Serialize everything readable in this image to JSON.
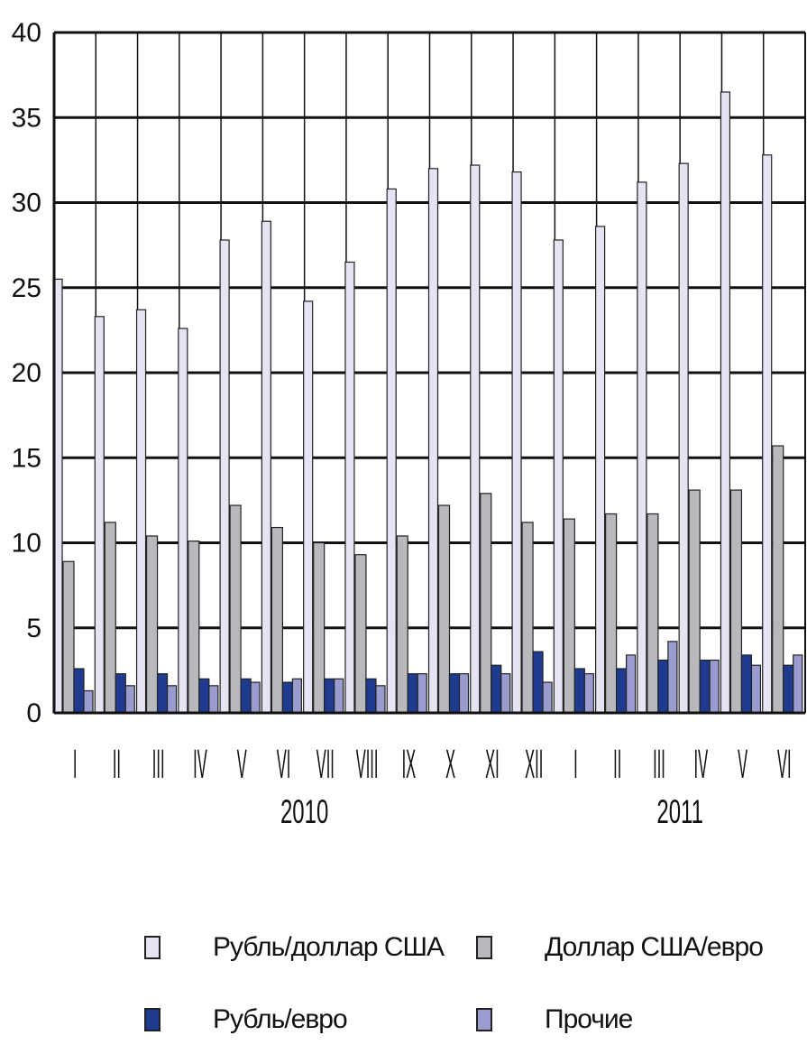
{
  "chart_data": {
    "type": "bar",
    "title": "",
    "xlabel": "",
    "ylabel": "",
    "ylim": [
      0,
      40
    ],
    "yticks": [
      "0",
      "5",
      "10",
      "15",
      "20",
      "25",
      "30",
      "35",
      "40"
    ],
    "grid": "horizontal",
    "categories": [
      "I",
      "II",
      "III",
      "IV",
      "V",
      "VI",
      "VII",
      "VIII",
      "IX",
      "X",
      "XI",
      "XII",
      "I",
      "II",
      "III",
      "IV",
      "V",
      "VI"
    ],
    "years": [
      {
        "label": "2010",
        "start": 0,
        "end": 11
      },
      {
        "label": "2011",
        "start": 12,
        "end": 17
      }
    ],
    "series": [
      {
        "name": "Рубль/доллар США",
        "color": "#e4e4f2",
        "values": [
          25.5,
          23.3,
          23.7,
          22.6,
          27.8,
          28.9,
          24.2,
          26.5,
          30.8,
          32.0,
          32.2,
          31.8,
          27.8,
          28.6,
          31.2,
          32.3,
          36.5,
          32.8
        ]
      },
      {
        "name": "Доллар США/евро",
        "color": "#b7b9bc",
        "values": [
          8.9,
          11.2,
          10.4,
          10.1,
          12.2,
          10.9,
          10.0,
          9.3,
          10.4,
          12.2,
          12.9,
          11.2,
          11.4,
          11.7,
          11.7,
          13.1,
          13.1,
          15.7
        ]
      },
      {
        "name": "Рубль/евро",
        "color": "#1f3b8f",
        "values": [
          2.6,
          2.3,
          2.3,
          2.0,
          2.0,
          1.8,
          2.0,
          2.0,
          2.3,
          2.3,
          2.8,
          3.6,
          2.6,
          2.6,
          3.1,
          3.1,
          3.4,
          2.8
        ]
      },
      {
        "name": "Прочие",
        "color": "#9a9cd0",
        "values": [
          1.3,
          1.6,
          1.6,
          1.6,
          1.8,
          2.0,
          2.0,
          1.6,
          2.3,
          2.3,
          2.3,
          1.8,
          2.3,
          3.4,
          4.2,
          3.1,
          2.8,
          3.4
        ]
      }
    ],
    "legend": [
      {
        "label": "Рубль/доллар США",
        "color": "#e4e4f2"
      },
      {
        "label": "Доллар США/евро",
        "color": "#b7b9bc"
      },
      {
        "label": "Рубль/евро",
        "color": "#1f3b8f"
      },
      {
        "label": "Прочие",
        "color": "#9a9cd0"
      }
    ],
    "legend_placement": "bottom"
  }
}
